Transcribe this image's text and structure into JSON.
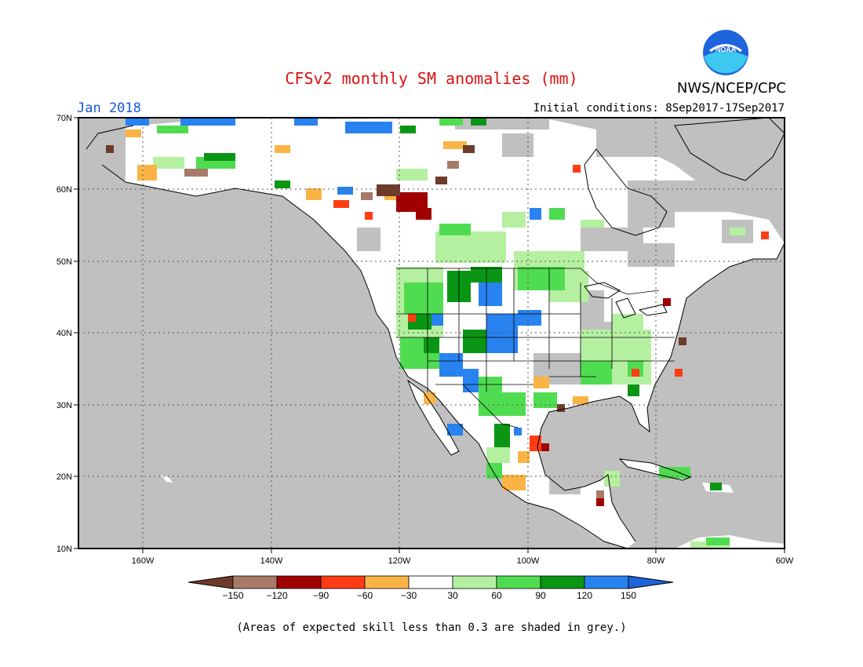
{
  "header": {
    "title": "CFSv2 monthly SM anomalies (mm)",
    "agency": "NWS/NCEP/CPC",
    "logo_text": "NOAA",
    "period": "Jan 2018",
    "initial_conditions": "Initial conditions: 8Sep2017-17Sep2017"
  },
  "map": {
    "region": "North America",
    "lat_labels": [
      "70N",
      "60N",
      "50N",
      "40N",
      "30N",
      "20N",
      "10N"
    ],
    "lon_labels": [
      "160W",
      "140W",
      "120W",
      "100W",
      "80W",
      "60W"
    ],
    "background_grey": "#c0c0c0",
    "land_color": "#ffffff",
    "coast_color": "#000000"
  },
  "legend": {
    "tick_labels": [
      "-150",
      "-120",
      "-90",
      "-60",
      "-30",
      "30",
      "60",
      "90",
      "120",
      "150"
    ],
    "colors": [
      "#6e3b2a",
      "#a87a68",
      "#a00000",
      "#ff3c14",
      "#fab446",
      "#ffffff",
      "#b4f0a0",
      "#50dc50",
      "#0a9614",
      "#2882f0",
      "#1e64dc"
    ]
  },
  "footnote": "(Areas of expected skill less than 0.3 are shaded in grey.)"
}
